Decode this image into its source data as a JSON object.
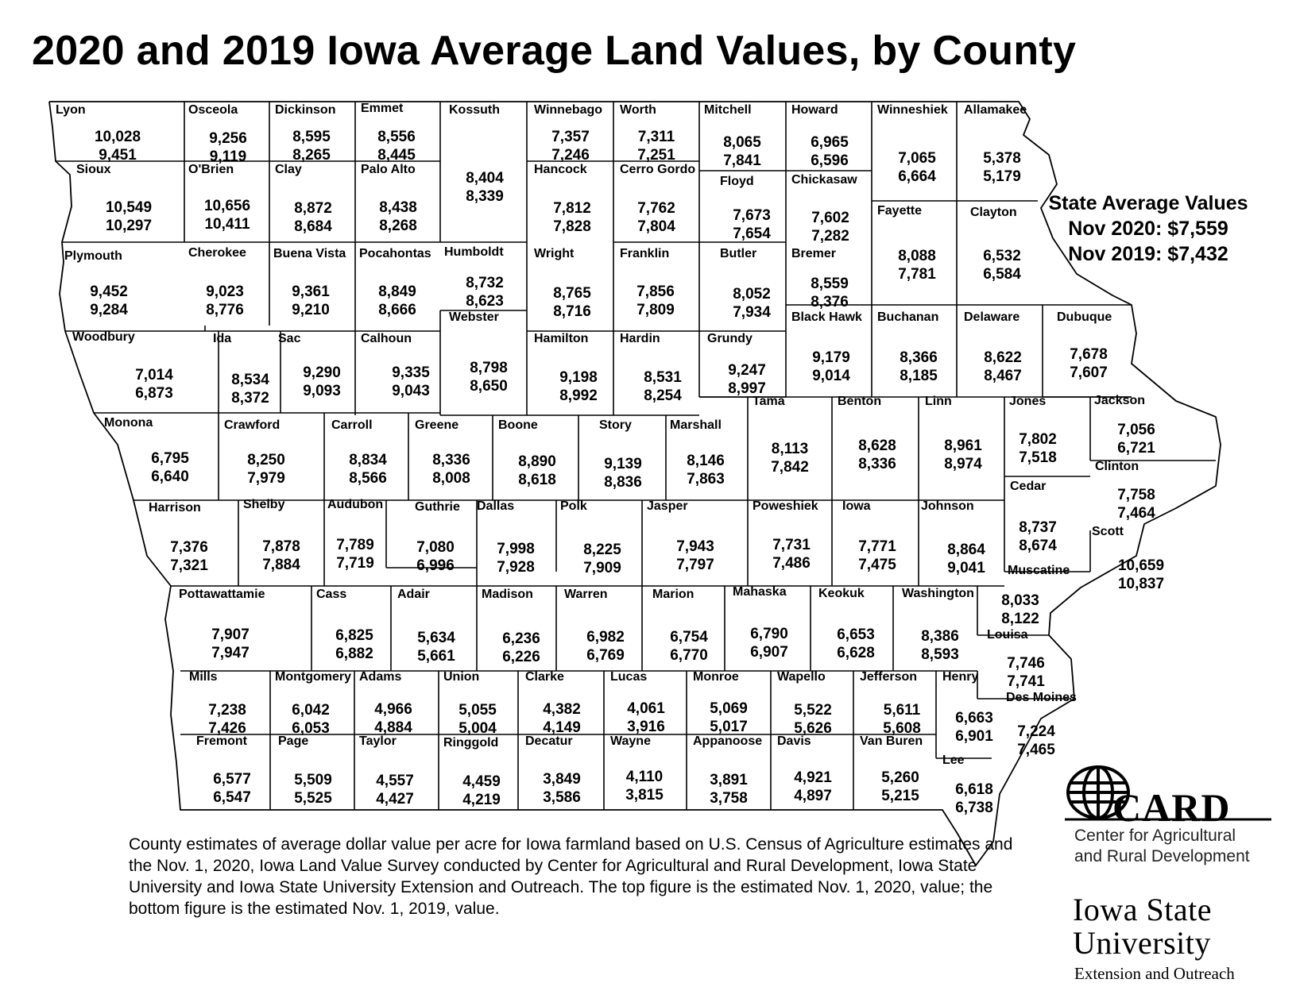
{
  "title": "2020 and 2019 Iowa Average Land Values, by County",
  "state_average": {
    "heading": "State Average Values",
    "nov_2020": "Nov 2020: $7,559",
    "nov_2019": "Nov 2019: $7,432"
  },
  "footnote": "County estimates of average dollar value per acre for Iowa farmland based on U.S. Census of Agriculture estimates and the Nov. 1, 2020, Iowa Land Value Survey conducted by Center for Agricultural and Rural Development, Iowa State University and Iowa State University Extension and Outreach. The top figure is the estimated Nov. 1, 2020, value; the bottom figure is the estimated Nov. 1, 2019, value.",
  "logos": {
    "card_name": "CARD",
    "card_line1": "Center for Agricultural",
    "card_line2": "and Rural Development",
    "isu_line1": "Iowa State",
    "isu_line2": "University",
    "isu_line3": "Extension and Outreach"
  },
  "counties": [
    {
      "name": "Lyon",
      "v2020": "10,028",
      "v2019": "9,451"
    },
    {
      "name": "Osceola",
      "v2020": "9,256",
      "v2019": "9,119"
    },
    {
      "name": "Dickinson",
      "v2020": "8,595",
      "v2019": "8,265"
    },
    {
      "name": "Emmet",
      "v2020": "8,556",
      "v2019": "8,445"
    },
    {
      "name": "Kossuth",
      "v2020": "8,404",
      "v2019": "8,339"
    },
    {
      "name": "Winnebago",
      "v2020": "7,357",
      "v2019": "7,246"
    },
    {
      "name": "Worth",
      "v2020": "7,311",
      "v2019": "7,251"
    },
    {
      "name": "Mitchell",
      "v2020": "8,065",
      "v2019": "7,841"
    },
    {
      "name": "Howard",
      "v2020": "6,965",
      "v2019": "6,596"
    },
    {
      "name": "Winneshiek",
      "v2020": "7,065",
      "v2019": "6,664"
    },
    {
      "name": "Allamakee",
      "v2020": "5,378",
      "v2019": "5,179"
    },
    {
      "name": "Sioux",
      "v2020": "10,549",
      "v2019": "10,297"
    },
    {
      "name": "O'Brien",
      "v2020": "10,656",
      "v2019": "10,411"
    },
    {
      "name": "Clay",
      "v2020": "8,872",
      "v2019": "8,684"
    },
    {
      "name": "Palo Alto",
      "v2020": "8,438",
      "v2019": "8,268"
    },
    {
      "name": "Hancock",
      "v2020": "7,812",
      "v2019": "7,828"
    },
    {
      "name": "Cerro Gordo",
      "v2020": "7,762",
      "v2019": "7,804"
    },
    {
      "name": "Floyd",
      "v2020": "7,673",
      "v2019": "7,654"
    },
    {
      "name": "Chickasaw",
      "v2020": "7,602",
      "v2019": "7,282"
    },
    {
      "name": "Fayette",
      "v2020": "8,088",
      "v2019": "7,781"
    },
    {
      "name": "Clayton",
      "v2020": "6,532",
      "v2019": "6,584"
    },
    {
      "name": "Plymouth",
      "v2020": "9,452",
      "v2019": "9,284"
    },
    {
      "name": "Cherokee",
      "v2020": "9,023",
      "v2019": "8,776"
    },
    {
      "name": "Buena Vista",
      "v2020": "9,361",
      "v2019": "9,210"
    },
    {
      "name": "Pocahontas",
      "v2020": "8,849",
      "v2019": "8,666"
    },
    {
      "name": "Humboldt",
      "v2020": "8,732",
      "v2019": "8,623"
    },
    {
      "name": "Wright",
      "v2020": "8,765",
      "v2019": "8,716"
    },
    {
      "name": "Franklin",
      "v2020": "7,856",
      "v2019": "7,809"
    },
    {
      "name": "Butler",
      "v2020": "8,052",
      "v2019": "7,934"
    },
    {
      "name": "Bremer",
      "v2020": "8,559",
      "v2019": "8,376"
    },
    {
      "name": "Woodbury",
      "v2020": "7,014",
      "v2019": "6,873"
    },
    {
      "name": "Ida",
      "v2020": "8,534",
      "v2019": "8,372"
    },
    {
      "name": "Sac",
      "v2020": "9,290",
      "v2019": "9,093"
    },
    {
      "name": "Calhoun",
      "v2020": "9,335",
      "v2019": "9,043"
    },
    {
      "name": "Webster",
      "v2020": "8,798",
      "v2019": "8,650"
    },
    {
      "name": "Hamilton",
      "v2020": "9,198",
      "v2019": "8,992"
    },
    {
      "name": "Hardin",
      "v2020": "8,531",
      "v2019": "8,254"
    },
    {
      "name": "Grundy",
      "v2020": "9,247",
      "v2019": "8,997"
    },
    {
      "name": "Black Hawk",
      "v2020": "9,179",
      "v2019": "9,014"
    },
    {
      "name": "Buchanan",
      "v2020": "8,366",
      "v2019": "8,185"
    },
    {
      "name": "Delaware",
      "v2020": "8,622",
      "v2019": "8,467"
    },
    {
      "name": "Dubuque",
      "v2020": "7,678",
      "v2019": "7,607"
    },
    {
      "name": "Monona",
      "v2020": "6,795",
      "v2019": "6,640"
    },
    {
      "name": "Crawford",
      "v2020": "8,250",
      "v2019": "7,979"
    },
    {
      "name": "Carroll",
      "v2020": "8,834",
      "v2019": "8,566"
    },
    {
      "name": "Greene",
      "v2020": "8,336",
      "v2019": "8,008"
    },
    {
      "name": "Boone",
      "v2020": "8,890",
      "v2019": "8,618"
    },
    {
      "name": "Story",
      "v2020": "9,139",
      "v2019": "8,836"
    },
    {
      "name": "Marshall",
      "v2020": "8,146",
      "v2019": "7,863"
    },
    {
      "name": "Tama",
      "v2020": "8,113",
      "v2019": "7,842"
    },
    {
      "name": "Benton",
      "v2020": "8,628",
      "v2019": "8,336"
    },
    {
      "name": "Linn",
      "v2020": "8,961",
      "v2019": "8,974"
    },
    {
      "name": "Jones",
      "v2020": "7,802",
      "v2019": "7,518"
    },
    {
      "name": "Jackson",
      "v2020": "7,056",
      "v2019": "6,721"
    },
    {
      "name": "Harrison",
      "v2020": "7,376",
      "v2019": "7,321"
    },
    {
      "name": "Shelby",
      "v2020": "7,878",
      "v2019": "7,884"
    },
    {
      "name": "Audubon",
      "v2020": "7,789",
      "v2019": "7,719"
    },
    {
      "name": "Guthrie",
      "v2020": "7,080",
      "v2019": "6,996"
    },
    {
      "name": "Dallas",
      "v2020": "7,998",
      "v2019": "7,928"
    },
    {
      "name": "Polk",
      "v2020": "8,225",
      "v2019": "7,909"
    },
    {
      "name": "Jasper",
      "v2020": "7,943",
      "v2019": "7,797"
    },
    {
      "name": "Poweshiek",
      "v2020": "7,731",
      "v2019": "7,486"
    },
    {
      "name": "Iowa",
      "v2020": "7,771",
      "v2019": "7,475"
    },
    {
      "name": "Johnson",
      "v2020": "8,864",
      "v2019": "9,041"
    },
    {
      "name": "Cedar",
      "v2020": "8,737",
      "v2019": "8,674"
    },
    {
      "name": "Clinton",
      "v2020": "7,758",
      "v2019": "7,464"
    },
    {
      "name": "Scott",
      "v2020": "10,659",
      "v2019": "10,837"
    },
    {
      "name": "Muscatine",
      "v2020": "8,033",
      "v2019": "8,122"
    },
    {
      "name": "Pottawattamie",
      "v2020": "7,907",
      "v2019": "7,947"
    },
    {
      "name": "Cass",
      "v2020": "6,825",
      "v2019": "6,882"
    },
    {
      "name": "Adair",
      "v2020": "5,634",
      "v2019": "5,661"
    },
    {
      "name": "Madison",
      "v2020": "6,236",
      "v2019": "6,226"
    },
    {
      "name": "Warren",
      "v2020": "6,982",
      "v2019": "6,769"
    },
    {
      "name": "Marion",
      "v2020": "6,754",
      "v2019": "6,770"
    },
    {
      "name": "Mahaska",
      "v2020": "6,790",
      "v2019": "6,907"
    },
    {
      "name": "Keokuk",
      "v2020": "6,653",
      "v2019": "6,628"
    },
    {
      "name": "Washington",
      "v2020": "8,386",
      "v2019": "8,593"
    },
    {
      "name": "Louisa",
      "v2020": "7,746",
      "v2019": "7,741"
    },
    {
      "name": "Mills",
      "v2020": "7,238",
      "v2019": "7,426"
    },
    {
      "name": "Montgomery",
      "v2020": "6,042",
      "v2019": "6,053"
    },
    {
      "name": "Adams",
      "v2020": "4,966",
      "v2019": "4,884"
    },
    {
      "name": "Union",
      "v2020": "5,055",
      "v2019": "5,004"
    },
    {
      "name": "Clarke",
      "v2020": "4,382",
      "v2019": "4,149"
    },
    {
      "name": "Lucas",
      "v2020": "4,061",
      "v2019": "3,916"
    },
    {
      "name": "Monroe",
      "v2020": "5,069",
      "v2019": "5,017"
    },
    {
      "name": "Wapello",
      "v2020": "5,522",
      "v2019": "5,626"
    },
    {
      "name": "Jefferson",
      "v2020": "5,611",
      "v2019": "5,608"
    },
    {
      "name": "Henry",
      "v2020": "6,663",
      "v2019": "6,901"
    },
    {
      "name": "Des Moines",
      "v2020": "7,224",
      "v2019": "7,465"
    },
    {
      "name": "Fremont",
      "v2020": "6,577",
      "v2019": "6,547"
    },
    {
      "name": "Page",
      "v2020": "5,509",
      "v2019": "5,525"
    },
    {
      "name": "Taylor",
      "v2020": "4,557",
      "v2019": "4,427"
    },
    {
      "name": "Ringgold",
      "v2020": "4,459",
      "v2019": "4,219"
    },
    {
      "name": "Decatur",
      "v2020": "3,849",
      "v2019": "3,586"
    },
    {
      "name": "Wayne",
      "v2020": "4,110",
      "v2019": "3,815"
    },
    {
      "name": "Appanoose",
      "v2020": "3,891",
      "v2019": "3,758"
    },
    {
      "name": "Davis",
      "v2020": "4,921",
      "v2019": "4,897"
    },
    {
      "name": "Van Buren",
      "v2020": "5,260",
      "v2019": "5,215"
    },
    {
      "name": "Lee",
      "v2020": "6,618",
      "v2019": "6,738"
    }
  ]
}
